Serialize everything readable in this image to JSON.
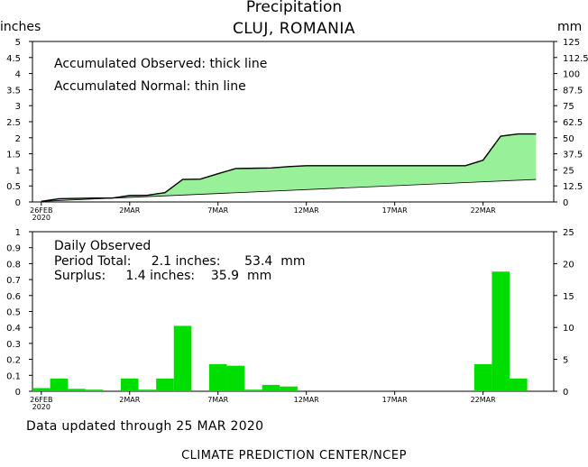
{
  "header": {
    "title": "Precipitation",
    "subtitle": "CLUJ, ROMANIA",
    "unit_left": "inches",
    "unit_right": "mm"
  },
  "footer": {
    "updated": "Data updated through 25 MAR 2020",
    "credit": "CLIMATE PREDICTION CENTER/NCEP"
  },
  "colors": {
    "accumulated_fill": "#98f098",
    "daily_bar": "#00dd00",
    "line": "#000000"
  },
  "chart_data": [
    {
      "type": "area",
      "annotations": [
        "Accumulated Observed: thick line",
        "Accumulated Normal: thin line"
      ],
      "x_tick_labels": [
        "26FEB",
        "2MAR",
        "7MAR",
        "12MAR",
        "17MAR",
        "22MAR"
      ],
      "x_tick_sublabel": "2020",
      "x_tick_days": [
        0,
        5,
        10,
        15,
        20,
        25
      ],
      "ylim_left": [
        0,
        5
      ],
      "ylim_right": [
        0,
        125
      ],
      "yticks_left": [
        "0",
        "0.5",
        "1",
        "1.5",
        "2",
        "2.5",
        "3",
        "3.5",
        "4",
        "4.5",
        "5"
      ],
      "yticks_right": [
        "0",
        "12.5",
        "25",
        "37.5",
        "50",
        "62.5",
        "75",
        "87.5",
        "100",
        "112.5",
        "125"
      ],
      "series": [
        {
          "label": "Accumulated Observed",
          "x_days": [
            0,
            1,
            2,
            3,
            4,
            5,
            6,
            7,
            8,
            9,
            10,
            11,
            12,
            13,
            14,
            15,
            16,
            17,
            18,
            19,
            20,
            21,
            22,
            23,
            24,
            25,
            26,
            27,
            28
          ],
          "values": [
            0.02,
            0.1,
            0.11,
            0.12,
            0.12,
            0.2,
            0.21,
            0.29,
            0.7,
            0.71,
            0.88,
            1.04,
            1.05,
            1.06,
            1.1,
            1.13,
            1.13,
            1.13,
            1.13,
            1.13,
            1.13,
            1.13,
            1.13,
            1.13,
            1.13,
            1.3,
            2.05,
            2.12,
            2.12
          ]
        },
        {
          "label": "Accumulated Normal",
          "x_days": [
            0,
            28
          ],
          "values": [
            0.02,
            0.7
          ]
        }
      ]
    },
    {
      "type": "bar",
      "annotations": [
        "Daily Observed",
        "Period Total:     2.1 inches:      53.4  mm",
        "Surplus:     1.4 inches:    35.9  mm"
      ],
      "x_tick_labels": [
        "26FEB",
        "2MAR",
        "7MAR",
        "12MAR",
        "17MAR",
        "22MAR"
      ],
      "x_tick_sublabel": "2020",
      "x_tick_days": [
        0,
        5,
        10,
        15,
        20,
        25
      ],
      "ylim_left": [
        0,
        1
      ],
      "ylim_right": [
        0,
        25
      ],
      "yticks_left": [
        "0",
        "0.1",
        "0.2",
        "0.3",
        "0.4",
        "0.5",
        "0.6",
        "0.7",
        "0.8",
        "0.9",
        "1"
      ],
      "yticks_right": [
        "0",
        "5",
        "10",
        "15",
        "20",
        "25"
      ],
      "x_days": [
        0,
        1,
        2,
        3,
        4,
        5,
        6,
        7,
        8,
        9,
        10,
        11,
        12,
        13,
        14,
        15,
        16,
        17,
        18,
        19,
        20,
        21,
        22,
        23,
        24,
        25,
        26,
        27,
        28
      ],
      "values": [
        0.02,
        0.08,
        0.015,
        0.01,
        0,
        0.08,
        0.01,
        0.08,
        0.41,
        0,
        0.17,
        0.16,
        0.01,
        0.04,
        0.03,
        0,
        0,
        0,
        0,
        0,
        0,
        0,
        0,
        0,
        0,
        0.17,
        0.75,
        0.08,
        0
      ]
    }
  ]
}
